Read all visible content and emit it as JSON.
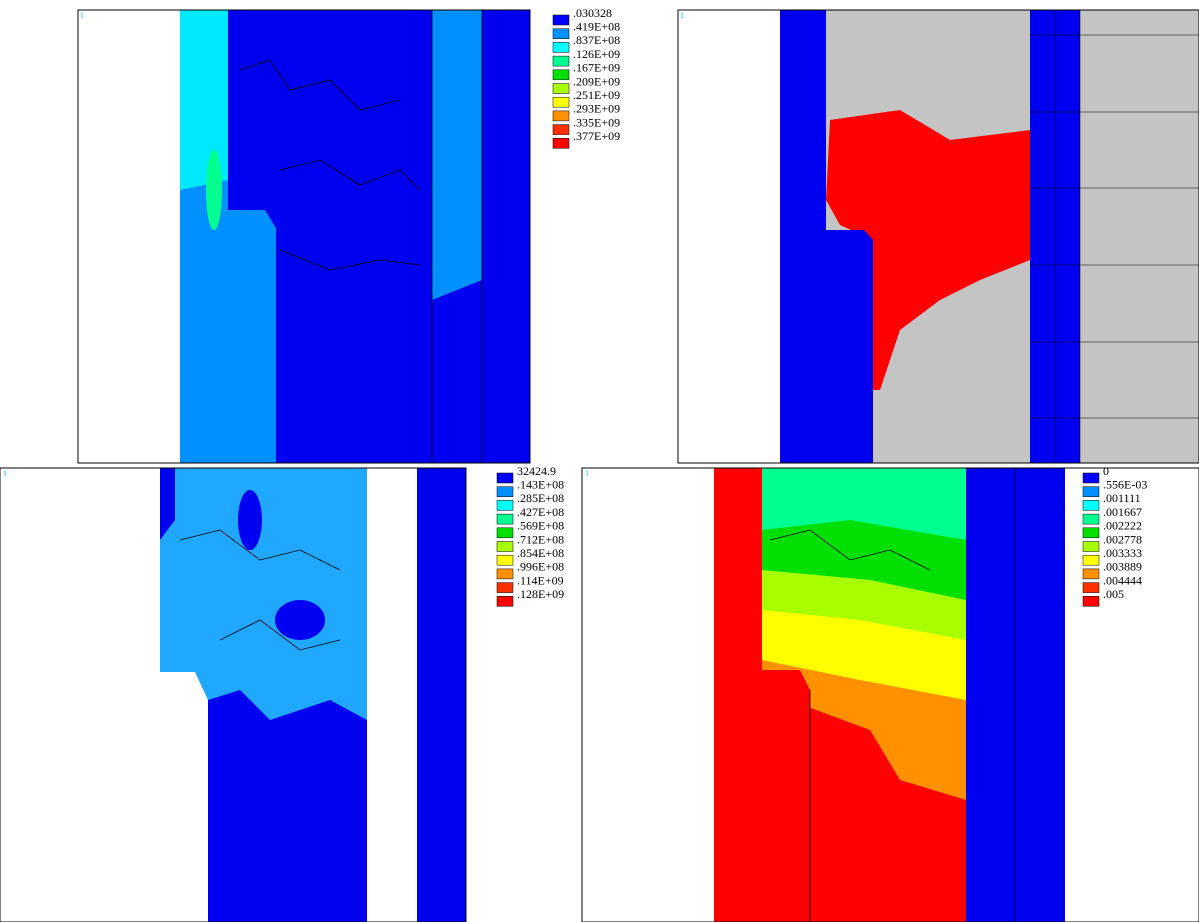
{
  "panels": [
    {
      "tag": "1",
      "legend": [
        {
          "label": ".030328",
          "color": "#0000ff"
        },
        {
          "label": ".419E+08",
          "color": "#0090ff"
        },
        {
          "label": ".837E+08",
          "color": "#00ffff"
        },
        {
          "label": ".126E+09",
          "color": "#00ff90"
        },
        {
          "label": ".167E+09",
          "color": "#00e000"
        },
        {
          "label": ".209E+09",
          "color": "#a8ff00"
        },
        {
          "label": ".251E+09",
          "color": "#ffff00"
        },
        {
          "label": ".293E+09",
          "color": "#ff9000"
        },
        {
          "label": ".335E+09",
          "color": "#ff3000"
        },
        {
          "label": ".377E+09",
          "color": "#ff0000"
        }
      ]
    },
    {
      "tag": "1",
      "legend": []
    },
    {
      "tag": "1",
      "legend": [
        {
          "label": "32424.9",
          "color": "#0000ff"
        },
        {
          "label": ".143E+08",
          "color": "#0090ff"
        },
        {
          "label": ".285E+08",
          "color": "#00ffff"
        },
        {
          "label": ".427E+08",
          "color": "#00ff90"
        },
        {
          "label": ".569E+08",
          "color": "#00e000"
        },
        {
          "label": ".712E+08",
          "color": "#a8ff00"
        },
        {
          "label": ".854E+08",
          "color": "#ffff00"
        },
        {
          "label": ".996E+08",
          "color": "#ff9000"
        },
        {
          "label": ".114E+09",
          "color": "#ff3000"
        },
        {
          "label": ".128E+09",
          "color": "#ff0000"
        }
      ]
    },
    {
      "tag": "1",
      "legend": [
        {
          "label": "0",
          "color": "#0000ff"
        },
        {
          "label": ".556E-03",
          "color": "#0090ff"
        },
        {
          "label": ".001111",
          "color": "#00ffff"
        },
        {
          "label": ".001667",
          "color": "#00ff90"
        },
        {
          "label": ".002222",
          "color": "#00e000"
        },
        {
          "label": ".002778",
          "color": "#a8ff00"
        },
        {
          "label": ".003333",
          "color": "#ffff00"
        },
        {
          "label": ".003889",
          "color": "#ff9000"
        },
        {
          "label": ".004444",
          "color": "#ff3000"
        },
        {
          "label": ".005",
          "color": "#ff0000"
        }
      ]
    }
  ]
}
